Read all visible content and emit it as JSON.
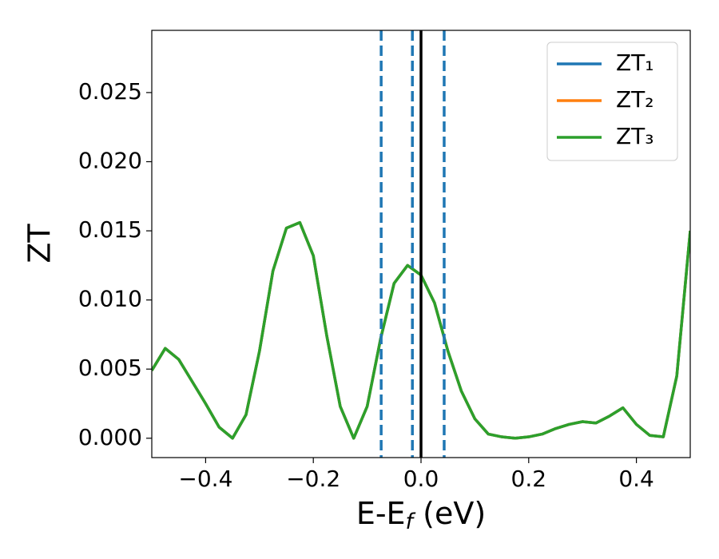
{
  "chart_data": {
    "type": "line",
    "ylabel": "ZT",
    "xlabel": {
      "main": "E-E",
      "sub": "f",
      "unit": " (eV)"
    },
    "x": [
      -0.5,
      -0.475,
      -0.45,
      -0.425,
      -0.4,
      -0.375,
      -0.35,
      -0.325,
      -0.3,
      -0.275,
      -0.25,
      -0.225,
      -0.2,
      -0.175,
      -0.15,
      -0.125,
      -0.1,
      -0.075,
      -0.05,
      -0.025,
      0,
      0.025,
      0.05,
      0.075,
      0.1,
      0.125,
      0.15,
      0.175,
      0.2,
      0.225,
      0.25,
      0.275,
      0.3,
      0.325,
      0.35,
      0.375,
      0.4,
      0.425,
      0.45,
      0.475,
      0.5
    ],
    "series": [
      {
        "name": "ZT₁",
        "color": "#1f77b4",
        "values": [
          0.0049,
          0.0065,
          0.0057,
          0.0041,
          0.0025,
          0.0008,
          0.0,
          0.0017,
          0.0063,
          0.0121,
          0.0152,
          0.0156,
          0.0132,
          0.0074,
          0.0023,
          0.0,
          0.0023,
          0.0072,
          0.0112,
          0.0125,
          0.0118,
          0.0098,
          0.0063,
          0.0034,
          0.0014,
          0.0003,
          0.0001,
          0.0,
          0.0001,
          0.0003,
          0.0007,
          0.001,
          0.0012,
          0.0011,
          0.0016,
          0.0022,
          0.001,
          0.0002,
          0.0001,
          0.0045,
          0.015
        ]
      },
      {
        "name": "ZT₂",
        "color": "#ff7f0e",
        "values": [
          0.0049,
          0.0065,
          0.0057,
          0.0041,
          0.0025,
          0.0008,
          0.0,
          0.0017,
          0.0063,
          0.0121,
          0.0152,
          0.0156,
          0.0132,
          0.0074,
          0.0023,
          0.0,
          0.0023,
          0.0072,
          0.0112,
          0.0125,
          0.0118,
          0.0098,
          0.0063,
          0.0034,
          0.0014,
          0.0003,
          0.0001,
          0.0,
          0.0001,
          0.0003,
          0.0007,
          0.001,
          0.0012,
          0.0011,
          0.0016,
          0.0022,
          0.001,
          0.0002,
          0.0001,
          0.0045,
          0.015
        ]
      },
      {
        "name": "ZT₃",
        "color": "#2ca02c",
        "values": [
          0.0049,
          0.0065,
          0.0057,
          0.0041,
          0.0025,
          0.0008,
          0.0,
          0.0017,
          0.0063,
          0.0121,
          0.0152,
          0.0156,
          0.0132,
          0.0074,
          0.0023,
          0.0,
          0.0023,
          0.0072,
          0.0112,
          0.0125,
          0.0118,
          0.0098,
          0.0063,
          0.0034,
          0.0014,
          0.0003,
          0.0001,
          0.0,
          0.0001,
          0.0003,
          0.0007,
          0.001,
          0.0012,
          0.0011,
          0.0016,
          0.0022,
          0.001,
          0.0002,
          0.0001,
          0.0045,
          0.015
        ]
      }
    ],
    "vlines": [
      {
        "x": -0.074,
        "color": "#1f77b4",
        "style": "dashed"
      },
      {
        "x": -0.016,
        "color": "#1f77b4",
        "style": "dashed"
      },
      {
        "x": 0.043,
        "color": "#1f77b4",
        "style": "dashed"
      },
      {
        "x": 0,
        "color": "#000000",
        "style": "solid"
      }
    ],
    "xlim": [
      -0.5,
      0.5
    ],
    "xticks": [
      {
        "value": -0.4,
        "label": "−0.4"
      },
      {
        "value": -0.2,
        "label": "−0.2"
      },
      {
        "value": 0,
        "label": "0.0"
      },
      0.2,
      0.4
    ],
    "ylim": [
      -0.0014,
      0.0295
    ],
    "yticks": [
      {
        "value": 0,
        "label": "0.000"
      },
      0.005,
      {
        "value": 0.01,
        "label": "0.010"
      },
      0.015,
      {
        "value": 0.02,
        "label": "0.020"
      },
      0.025
    ],
    "legend": "upper right",
    "grid": false
  }
}
